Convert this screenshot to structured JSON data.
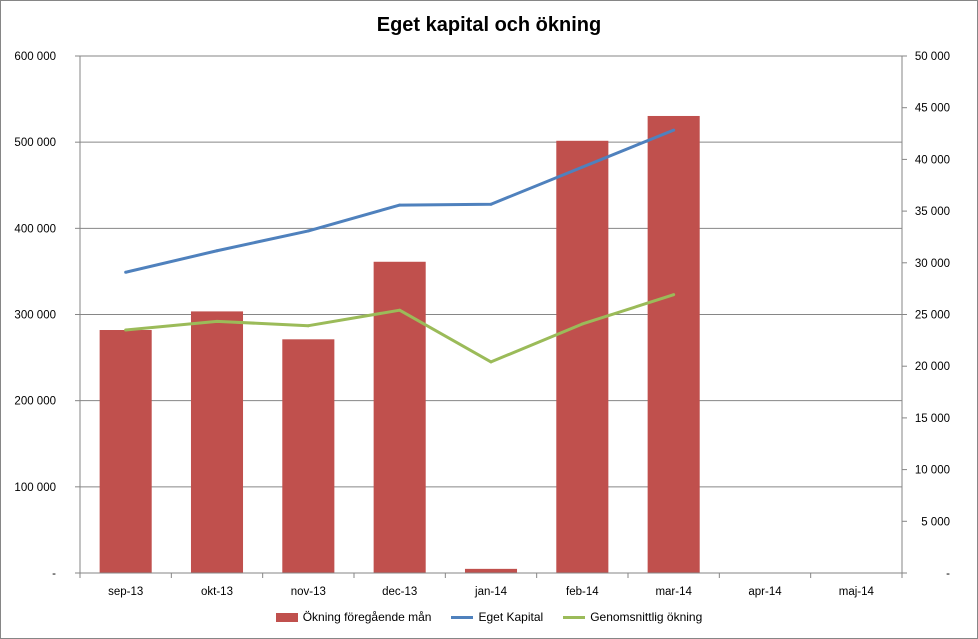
{
  "chart_data": {
    "type": "bar+line",
    "title": "Eget kapital och ökning",
    "categories": [
      "sep-13",
      "okt-13",
      "nov-13",
      "dec-13",
      "jan-14",
      "feb-14",
      "mar-14",
      "apr-14",
      "maj-14"
    ],
    "left_axis": {
      "min": 0,
      "max": 600000,
      "step": 100000,
      "tick_labels": [
        "-",
        "100 000",
        "200 000",
        "300 000",
        "400 000",
        "500 000",
        "600 000"
      ]
    },
    "right_axis": {
      "min": 0,
      "max": 50000,
      "step": 5000,
      "tick_labels": [
        "-",
        "5 000",
        "10 000",
        "15 000",
        "20 000",
        "25 000",
        "30 000",
        "35 000",
        "40 000",
        "45 000",
        "50 000"
      ]
    },
    "gridlines": true,
    "legend_position": "bottom",
    "series": [
      {
        "name": "Ökning föregående mån",
        "type": "bar",
        "axis": "right",
        "color": "#C0504D",
        "values": [
          23500,
          25300,
          22600,
          30100,
          400,
          41800,
          44200,
          null,
          null
        ]
      },
      {
        "name": "Eget Kapital",
        "type": "line",
        "axis": "left",
        "color": "#4F81BD",
        "values": [
          349000,
          374000,
          397000,
          427000,
          428000,
          471000,
          514000,
          null,
          null
        ]
      },
      {
        "name": "Genomsnittlig ökning",
        "type": "line",
        "axis": "left",
        "color": "#9BBB59",
        "values": [
          282000,
          292000,
          287000,
          305000,
          245000,
          289000,
          323000,
          null,
          null
        ]
      }
    ]
  }
}
